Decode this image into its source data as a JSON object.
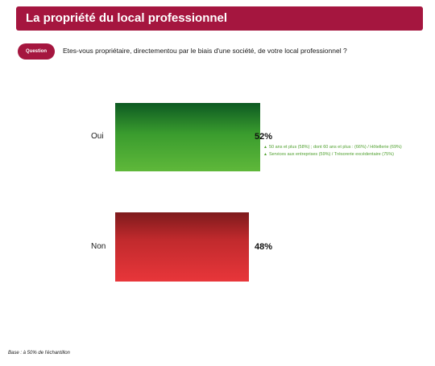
{
  "header": {
    "title": "La propriété du local professionnel"
  },
  "question": {
    "badge": "Question",
    "text": "Etes-vous propriétaire, directementou par le biais d'une société, de votre local professionnel ?"
  },
  "chart_data": {
    "type": "bar",
    "orientation": "horizontal",
    "categories": [
      "Oui",
      "Non"
    ],
    "values": [
      52,
      48
    ],
    "value_labels": [
      "52%",
      "48%"
    ],
    "unit": "%",
    "colors": [
      "#3a9c2e",
      "#d42f33"
    ],
    "annotations": [
      "50 ans et plus (58%) ;  dont 60 ans et plus : (66%)  / Hôtellerie (69%)",
      "Services aux entreprises (59%)  / Trésorerie  excédentaire (75%)"
    ],
    "annotation_color": "#4d9f2c"
  },
  "footer": {
    "base": "Base  : à 50% de l'échantillon"
  }
}
